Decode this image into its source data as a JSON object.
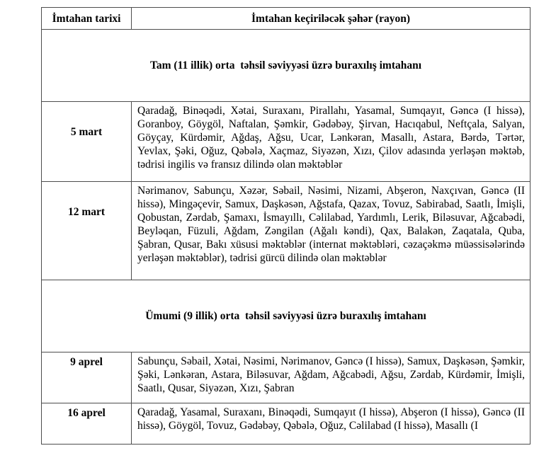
{
  "table": {
    "columns": [
      {
        "header": "İmtahan tarixi"
      },
      {
        "header": "İmtahan keçiriləcək şəhər (rayon)"
      }
    ],
    "sections": [
      {
        "title": "Tam (11 illik) orta  təhsil səviyyəsi üzrə buraxılış imtahanı",
        "rows": [
          {
            "date": "5 mart",
            "cities": "Qaradağ, Binəqədi, Xətai, Suraxanı, Pirallahı, Yasamal, Sumqayıt, Gəncə (I hissə), Goranboy, Göygöl, Naftalan, Şəmkir, Gədəbəy, Şirvan, Hacıqabul, Neftçala, Salyan, Göyçay, Kürdəmir, Ağdaş, Ağsu, Ucar, Lənkəran, Masallı, Astara, Bərdə, Tərtər, Yevlax, Şəki, Oğuz, Qəbələ, Xaçmaz, Siyəzən, Xızı, Çilov adasında yerləşən məktəb, tədrisi ingilis və fransız dilində olan məktəblər"
          },
          {
            "date": "12 mart",
            "cities": "Nərimanov, Sabunçu, Xəzər, Səbail, Nəsimi, Nizami, Abşeron, Naxçıvan, Gəncə (II hissə), Mingəçevir, Samux, Daşkəsən, Ağstafa, Qazax, Tovuz, Sabirabad, Saatlı, İmişli, Qobustan, Zərdab, Şamaxı, İsmayıllı, Cəlilabad, Yardımlı, Lerik, Biləsuvar, Ağcabədi, Beyləqan, Füzuli, Ağdam, Zəngilan (Ağalı kəndi), Qax, Balakən, Zaqatala, Quba, Şabran, Qusar, Bakı xüsusi məktəblər (internat məktəbləri, cəzaçəkmə müəssisələrində yerləşən məktəblər), tədrisi gürcü dilində olan məktəblər"
          }
        ]
      },
      {
        "title": "Ümumi (9 illik) orta  təhsil səviyyəsi üzrə buraxılış imtahanı",
        "rows": [
          {
            "date": "9 aprel",
            "cities": "Sabunçu, Səbail, Xətai, Nəsimi, Nərimanov, Gəncə (I hissə), Samux, Daşkəsən, Şəmkir, Şəki, Lənkəran, Astara, Biləsuvar, Ağdam, Ağcabədi, Ağsu, Zərdab, Kürdəmir, İmişli, Saatlı, Qusar, Siyəzən, Xızı, Şabran"
          },
          {
            "date": "16 aprel",
            "cities": "Qaradağ, Yasamal, Suraxanı, Binəqədi, Sumqayıt (I hissə), Abşeron (I hissə), Gəncə (II hissə), Göygöl, Tovuz, Gədəbəy, Qəbələ, Oğuz, Cəlilabad (I hissə), Masallı (I"
          }
        ]
      }
    ]
  }
}
